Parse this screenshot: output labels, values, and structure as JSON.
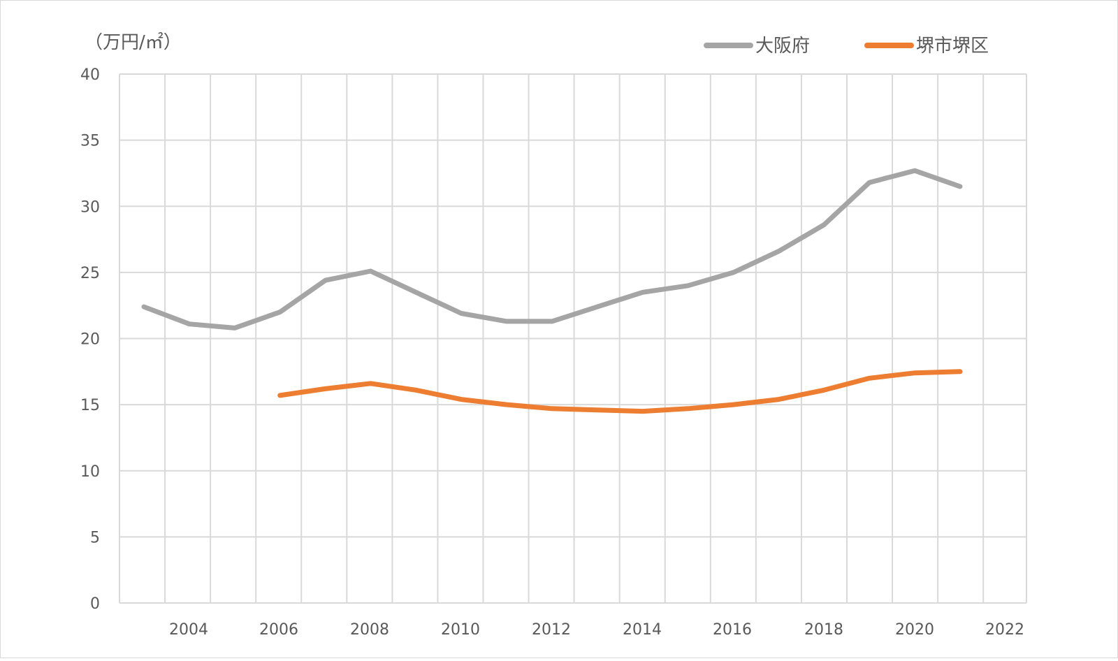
{
  "chart_data": {
    "type": "line",
    "y_unit_label": "（万円/㎡）",
    "x": [
      2003,
      2004,
      2005,
      2006,
      2007,
      2008,
      2009,
      2010,
      2011,
      2012,
      2013,
      2014,
      2015,
      2016,
      2017,
      2018,
      2019,
      2020,
      2021
    ],
    "series": [
      {
        "name": "大阪府",
        "color": "#a5a5a5",
        "values": [
          22.4,
          21.1,
          20.8,
          22.0,
          24.4,
          25.1,
          23.5,
          21.9,
          21.3,
          21.3,
          22.4,
          23.5,
          24.0,
          25.0,
          26.6,
          28.6,
          31.8,
          32.7,
          31.5
        ]
      },
      {
        "name": "堺市堺区",
        "color": "#ed7d31",
        "values": [
          null,
          null,
          null,
          15.7,
          16.2,
          16.6,
          16.1,
          15.4,
          15.0,
          14.7,
          14.6,
          14.5,
          14.7,
          15.0,
          15.4,
          16.1,
          17.0,
          17.4,
          17.5
        ]
      }
    ],
    "ylim": [
      0,
      40
    ],
    "y_ticks": [
      0,
      5,
      10,
      15,
      20,
      25,
      30,
      35,
      40
    ],
    "x_tick_labels": [
      "2004",
      "2006",
      "2008",
      "2010",
      "2012",
      "2014",
      "2016",
      "2018",
      "2020",
      "2022"
    ],
    "grid": true,
    "legend_position": "top-right"
  }
}
